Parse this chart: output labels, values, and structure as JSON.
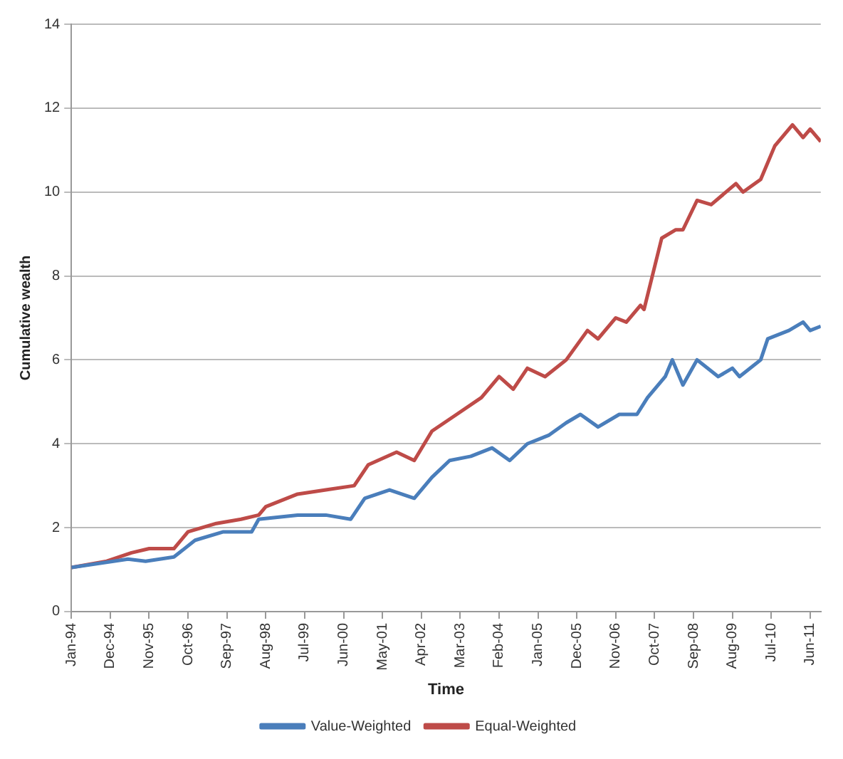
{
  "chart_data": {
    "type": "line",
    "xlabel": "Time",
    "ylabel": "Cumulative wealth",
    "xlim": [
      "1994-01",
      "2011-09"
    ],
    "ylim": [
      0,
      14
    ],
    "yticks": [
      0,
      2,
      4,
      6,
      8,
      10,
      12,
      14
    ],
    "xticks": [
      {
        "value": "1994-01",
        "label": "Jan-94"
      },
      {
        "value": "1994-12",
        "label": "Dec-94"
      },
      {
        "value": "1995-11",
        "label": "Nov-95"
      },
      {
        "value": "1996-10",
        "label": "Oct-96"
      },
      {
        "value": "1997-09",
        "label": "Sep-97"
      },
      {
        "value": "1998-08",
        "label": "Aug-98"
      },
      {
        "value": "1999-07",
        "label": "Jul-99"
      },
      {
        "value": "2000-06",
        "label": "Jun-00"
      },
      {
        "value": "2001-05",
        "label": "May-01"
      },
      {
        "value": "2002-04",
        "label": "Apr-02"
      },
      {
        "value": "2003-03",
        "label": "Mar-03"
      },
      {
        "value": "2004-02",
        "label": "Feb-04"
      },
      {
        "value": "2005-01",
        "label": "Jan-05"
      },
      {
        "value": "2005-12",
        "label": "Dec-05"
      },
      {
        "value": "2006-11",
        "label": "Nov-06"
      },
      {
        "value": "2007-10",
        "label": "Oct-07"
      },
      {
        "value": "2008-09",
        "label": "Sep-08"
      },
      {
        "value": "2009-08",
        "label": "Aug-09"
      },
      {
        "value": "2010-07",
        "label": "Jul-10"
      },
      {
        "value": "2011-06",
        "label": "Jun-11"
      }
    ],
    "grid": "y",
    "legend": "bottom",
    "marker": "none",
    "line_style": "solid",
    "series": [
      {
        "name": "Value-Weighted",
        "color": "#4a7ebb",
        "x": [
          "1994-01",
          "1995-05",
          "1995-10",
          "1996-06",
          "1996-12",
          "1997-08",
          "1998-04",
          "1998-06",
          "1999-05",
          "2000-01",
          "2000-08",
          "2000-12",
          "2001-07",
          "2002-02",
          "2002-07",
          "2002-12",
          "2003-06",
          "2003-12",
          "2004-05",
          "2004-10",
          "2005-04",
          "2005-09",
          "2006-01",
          "2006-06",
          "2006-12",
          "2007-05",
          "2007-08",
          "2008-01",
          "2008-03",
          "2008-06",
          "2008-10",
          "2009-04",
          "2009-08",
          "2009-10",
          "2010-04",
          "2010-06",
          "2010-12",
          "2011-04",
          "2011-06",
          "2011-09"
        ],
        "values": [
          1.05,
          1.25,
          1.2,
          1.3,
          1.7,
          1.9,
          1.9,
          2.2,
          2.3,
          2.3,
          2.2,
          2.7,
          2.9,
          2.7,
          3.2,
          3.6,
          3.7,
          3.9,
          3.6,
          4.0,
          4.2,
          4.5,
          4.7,
          4.4,
          4.7,
          4.7,
          5.1,
          5.6,
          6.0,
          5.4,
          6.0,
          5.6,
          5.8,
          5.6,
          6.0,
          6.5,
          6.7,
          6.9,
          6.7,
          6.8
        ]
      },
      {
        "name": "Equal-Weighted",
        "color": "#be4b48",
        "x": [
          "1994-01",
          "1994-11",
          "1995-06",
          "1995-11",
          "1996-06",
          "1996-10",
          "1997-06",
          "1998-01",
          "1998-06",
          "1998-08",
          "1999-05",
          "2000-01",
          "2000-09",
          "2001-01",
          "2001-09",
          "2002-02",
          "2002-07",
          "2003-02",
          "2003-09",
          "2004-02",
          "2004-06",
          "2004-10",
          "2005-03",
          "2005-09",
          "2006-03",
          "2006-06",
          "2006-11",
          "2007-02",
          "2007-06",
          "2007-07",
          "2007-12",
          "2008-04",
          "2008-06",
          "2008-10",
          "2009-02",
          "2009-09",
          "2009-11",
          "2010-04",
          "2010-08",
          "2011-01",
          "2011-04",
          "2011-06",
          "2011-09"
        ],
        "values": [
          1.05,
          1.2,
          1.4,
          1.5,
          1.5,
          1.9,
          2.1,
          2.2,
          2.3,
          2.5,
          2.8,
          2.9,
          3.0,
          3.5,
          3.8,
          3.6,
          4.3,
          4.7,
          5.1,
          5.6,
          5.3,
          5.8,
          5.6,
          6.0,
          6.7,
          6.5,
          7.0,
          6.9,
          7.3,
          7.2,
          8.9,
          9.1,
          9.1,
          9.8,
          9.7,
          10.2,
          10.0,
          10.3,
          11.1,
          11.6,
          11.3,
          11.5,
          11.2
        ]
      }
    ]
  }
}
